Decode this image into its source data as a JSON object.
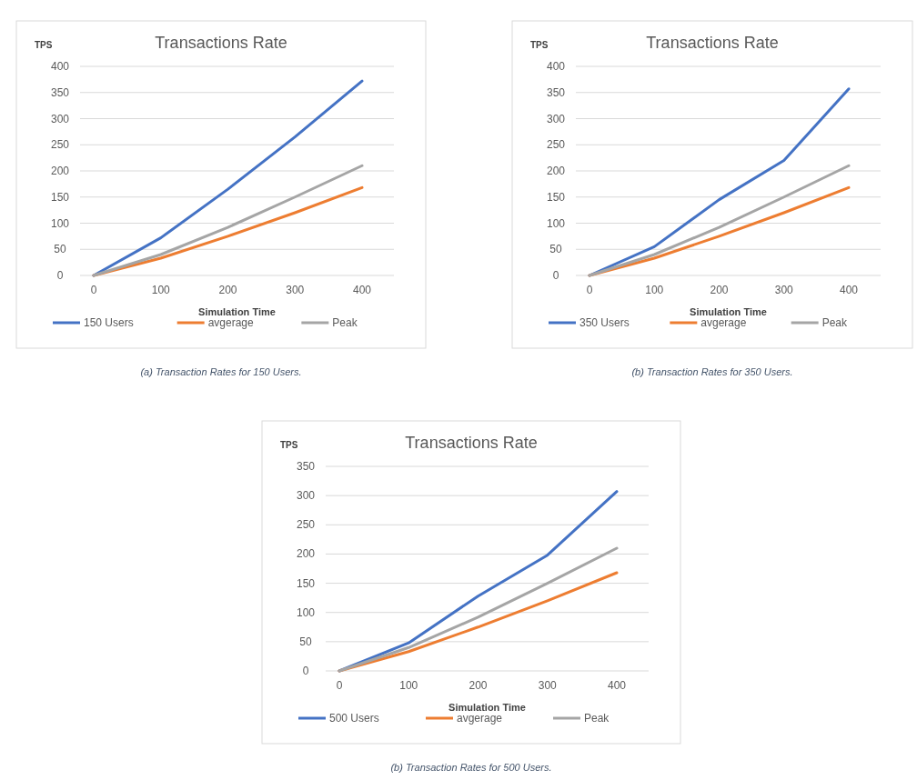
{
  "chart_data": [
    {
      "type": "line",
      "title": "Transactions Rate",
      "xlabel": "Simulation Time",
      "ylabel": "TPS",
      "categories": [
        "0",
        "100",
        "200",
        "300",
        "400"
      ],
      "ylim": [
        0,
        400
      ],
      "yticks": [
        0,
        50,
        100,
        150,
        200,
        250,
        300,
        350,
        400
      ],
      "grid": "y",
      "legend": "bottom",
      "line_style": "solid",
      "marker": "none",
      "annotations": [
        "(a) Transaction Rates for 150 Users."
      ],
      "series": [
        {
          "name": "150 Users",
          "color": "#4472c4",
          "values": [
            0,
            72,
            165,
            265,
            372
          ]
        },
        {
          "name": "avgerage",
          "color": "#ed7d31",
          "values": [
            0,
            33,
            75,
            120,
            168
          ]
        },
        {
          "name": "Peak",
          "color": "#a5a5a5",
          "values": [
            0,
            40,
            92,
            150,
            210
          ]
        }
      ]
    },
    {
      "type": "line",
      "title": "Transactions Rate",
      "xlabel": "Simulation Time",
      "ylabel": "TPS",
      "categories": [
        "0",
        "100",
        "200",
        "300",
        "400"
      ],
      "ylim": [
        0,
        400
      ],
      "yticks": [
        0,
        50,
        100,
        150,
        200,
        250,
        300,
        350,
        400
      ],
      "grid": "y",
      "legend": "bottom",
      "line_style": "solid",
      "marker": "none",
      "annotations": [
        "(b) Transaction Rates for 350 Users."
      ],
      "series": [
        {
          "name": "350 Users",
          "color": "#4472c4",
          "values": [
            0,
            55,
            145,
            220,
            357
          ]
        },
        {
          "name": "avgerage",
          "color": "#ed7d31",
          "values": [
            0,
            33,
            75,
            120,
            168
          ]
        },
        {
          "name": "Peak",
          "color": "#a5a5a5",
          "values": [
            0,
            40,
            92,
            150,
            210
          ]
        }
      ]
    },
    {
      "type": "line",
      "title": "Transactions Rate",
      "xlabel": "Simulation Time",
      "ylabel": "TPS",
      "categories": [
        "0",
        "100",
        "200",
        "300",
        "400"
      ],
      "ylim": [
        0,
        350
      ],
      "yticks": [
        0,
        50,
        100,
        150,
        200,
        250,
        300,
        350
      ],
      "grid": "y",
      "legend": "bottom",
      "line_style": "solid",
      "marker": "none",
      "annotations": [
        "(b) Transaction Rates for 500 Users."
      ],
      "series": [
        {
          "name": "500 Users",
          "color": "#4472c4",
          "values": [
            0,
            48,
            128,
            198,
            307
          ]
        },
        {
          "name": "avgerage",
          "color": "#ed7d31",
          "values": [
            0,
            33,
            75,
            120,
            168
          ]
        },
        {
          "name": "Peak",
          "color": "#a5a5a5",
          "values": [
            0,
            40,
            92,
            150,
            210
          ]
        }
      ]
    }
  ]
}
